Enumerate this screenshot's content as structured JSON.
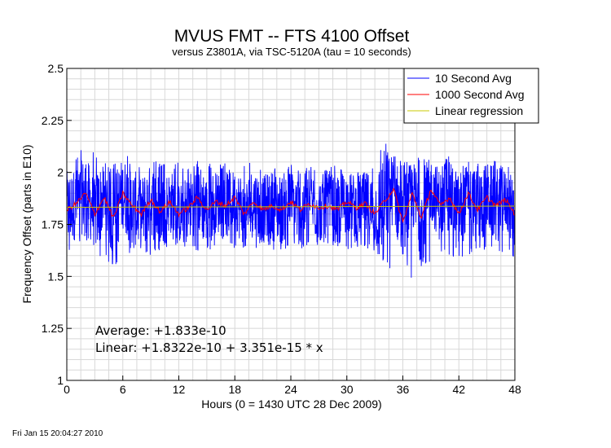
{
  "chart_data": {
    "type": "line",
    "title": "MVUS FMT -- FTS 4100 Offset",
    "subtitle": "versus Z3801A, via TSC-5120A (tau = 10 seconds)",
    "xlabel": "Hours (0 = 1430 UTC 28 Dec 2009)",
    "ylabel": "Frequency Offset (parts in E10)",
    "xlim": [
      0,
      48
    ],
    "ylim": [
      1,
      2.5
    ],
    "x_ticks": [
      0,
      6,
      12,
      18,
      24,
      30,
      36,
      42,
      48
    ],
    "y_ticks": [
      1,
      1.25,
      1.5,
      1.75,
      2,
      2.25,
      2.5
    ],
    "x_tick_labels": [
      "0",
      "6",
      "12",
      "18",
      "24",
      "30",
      "36",
      "42",
      "48"
    ],
    "y_tick_labels": [
      "1",
      "1.25",
      "1.5",
      "1.75",
      "2",
      "2.25",
      "2.5"
    ],
    "grid": true,
    "legend_position": "top-right",
    "series": [
      {
        "name": "10 Second Avg",
        "color": "#0000ff",
        "envelope_x": [
          0,
          1,
          2,
          3,
          4,
          5,
          6,
          7,
          8,
          9,
          10,
          11,
          12,
          13,
          14,
          15,
          16,
          17,
          18,
          19,
          20,
          21,
          22,
          23,
          24,
          25,
          26,
          27,
          28,
          29,
          30,
          31,
          32,
          33,
          34,
          35,
          36,
          37,
          38,
          39,
          40,
          41,
          42,
          43,
          44,
          45,
          46,
          47,
          48
        ],
        "envelope_max": [
          2.05,
          2.08,
          2.15,
          2.1,
          2.05,
          2.04,
          2.1,
          2.08,
          2.02,
          2.07,
          2.05,
          2.03,
          2.05,
          2.03,
          2.07,
          2.05,
          2.03,
          2.05,
          2.03,
          2.04,
          2.05,
          2.03,
          2.04,
          2.02,
          2.04,
          2.02,
          2.03,
          2.03,
          2.02,
          2.04,
          2.03,
          2.02,
          2.03,
          2.05,
          2.18,
          2.1,
          2.05,
          2.08,
          2.07,
          2.1,
          2.05,
          2.08,
          2.05,
          2.07,
          2.05,
          2.08,
          2.06,
          2.04,
          2.0
        ],
        "envelope_min": [
          1.6,
          1.65,
          1.68,
          1.6,
          1.58,
          1.55,
          1.58,
          1.62,
          1.6,
          1.6,
          1.62,
          1.65,
          1.63,
          1.65,
          1.62,
          1.63,
          1.62,
          1.66,
          1.63,
          1.63,
          1.64,
          1.63,
          1.63,
          1.62,
          1.64,
          1.63,
          1.64,
          1.65,
          1.64,
          1.64,
          1.63,
          1.64,
          1.63,
          1.6,
          1.56,
          1.52,
          1.58,
          1.47,
          1.55,
          1.55,
          1.6,
          1.6,
          1.58,
          1.6,
          1.62,
          1.63,
          1.6,
          1.62,
          1.58
        ]
      },
      {
        "name": "1000 Second Avg",
        "color": "#ff0000",
        "x": [
          0,
          1,
          2,
          3,
          4,
          5,
          6,
          7,
          8,
          9,
          10,
          11,
          12,
          13,
          14,
          15,
          16,
          17,
          18,
          19,
          20,
          21,
          22,
          23,
          24,
          25,
          26,
          27,
          28,
          29,
          30,
          31,
          32,
          33,
          34,
          35,
          36,
          37,
          38,
          39,
          40,
          41,
          42,
          43,
          44,
          45,
          46,
          47,
          48
        ],
        "y": [
          1.82,
          1.85,
          1.9,
          1.8,
          1.88,
          1.78,
          1.9,
          1.84,
          1.8,
          1.87,
          1.81,
          1.86,
          1.8,
          1.83,
          1.88,
          1.82,
          1.86,
          1.84,
          1.88,
          1.8,
          1.86,
          1.82,
          1.84,
          1.82,
          1.86,
          1.82,
          1.85,
          1.83,
          1.84,
          1.82,
          1.86,
          1.83,
          1.85,
          1.8,
          1.86,
          1.92,
          1.76,
          1.9,
          1.78,
          1.92,
          1.84,
          1.88,
          1.8,
          1.9,
          1.82,
          1.88,
          1.84,
          1.87,
          1.8
        ]
      },
      {
        "name": "Linear regression",
        "color": "#c8c800",
        "x": [
          0,
          48
        ],
        "y": [
          1.8322,
          1.838
        ]
      }
    ],
    "annotations": [
      "Average: +1.833e-10",
      "Linear: +1.8322e-10 + 3.351e-15 * x"
    ]
  },
  "footer_timestamp": "Fri Jan 15 20:04:27 2010"
}
